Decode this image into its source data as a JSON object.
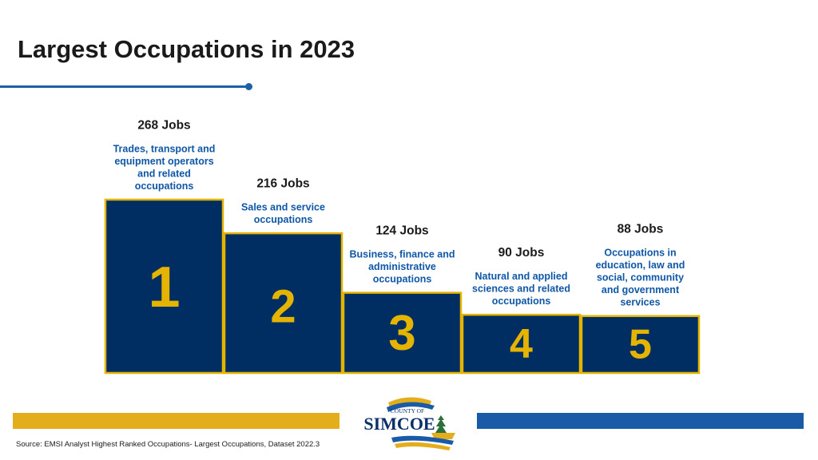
{
  "page": {
    "title": "Largest Occupations in 2023",
    "source": "Source: EMSI Analyst Highest Ranked Occupations- Largest Occupations, Dataset 2022.3"
  },
  "logo": {
    "line1": "COUNTY OF",
    "line2": "SIMCOE"
  },
  "colors": {
    "bar_fill": "#002e63",
    "bar_border": "#e4b400",
    "rank_number": "#e4b400",
    "category_text": "#0f57a6",
    "title_rule": "#1f5fa8",
    "band_gold": "#e4ad1c",
    "band_blue": "#1a5ba8"
  },
  "chart_data": {
    "type": "bar",
    "title": "Largest Occupations in 2023",
    "unit": "Jobs",
    "categories": [
      "Trades, transport and equipment operators and related occupations",
      "Sales and service occupations",
      "Business, finance and administrative occupations",
      "Natural and applied sciences and related occupations",
      "Occupations in education, law and social, community and government services"
    ],
    "category_lines": [
      [
        "Trades, transport and",
        "equipment operators",
        "and related",
        "occupations"
      ],
      [
        "Sales and service",
        "occupations"
      ],
      [
        "Business, finance and",
        "administrative",
        "occupations"
      ],
      [
        "Natural and applied",
        "sciences and related",
        "occupations"
      ],
      [
        "Occupations in",
        "education, law and",
        "social, community",
        "and government",
        "services"
      ]
    ],
    "values": [
      268,
      216,
      124,
      90,
      88
    ],
    "value_labels": [
      "268 Jobs",
      "216 Jobs",
      "124 Jobs",
      "90 Jobs",
      "88 Jobs"
    ],
    "ranks": [
      "1",
      "2",
      "3",
      "4",
      "5"
    ]
  }
}
